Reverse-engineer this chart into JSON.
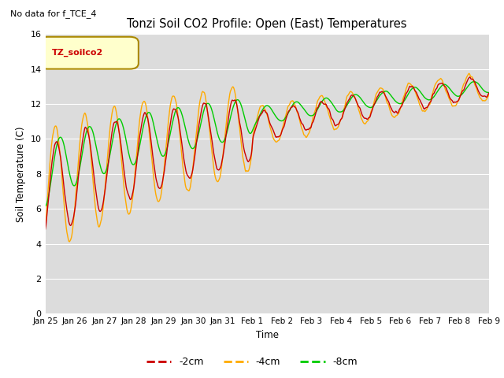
{
  "title": "Tonzi Soil CO2 Profile: Open (East) Temperatures",
  "subtitle": "No data for f_TCE_4",
  "ylabel": "Soil Temperature (C)",
  "xlabel": "Time",
  "legend_label": "TZ_soilco2",
  "ylim": [
    0,
    16
  ],
  "yticks": [
    0,
    2,
    4,
    6,
    8,
    10,
    12,
    14,
    16
  ],
  "bg_color": "#dcdcdc",
  "color_2cm": "#cc0000",
  "color_4cm": "#ffaa00",
  "color_8cm": "#00cc00",
  "linewidth": 1.0,
  "xlabels": [
    "Jan 25",
    "Jan 26",
    "Jan 27",
    "Jan 28",
    "Jan 29",
    "Jan 30",
    "Jan 31",
    "Feb 1",
    "Feb 2",
    "Feb 3",
    "Feb 4",
    "Feb 5",
    "Feb 6",
    "Feb 7",
    "Feb 8",
    "Feb 9"
  ]
}
